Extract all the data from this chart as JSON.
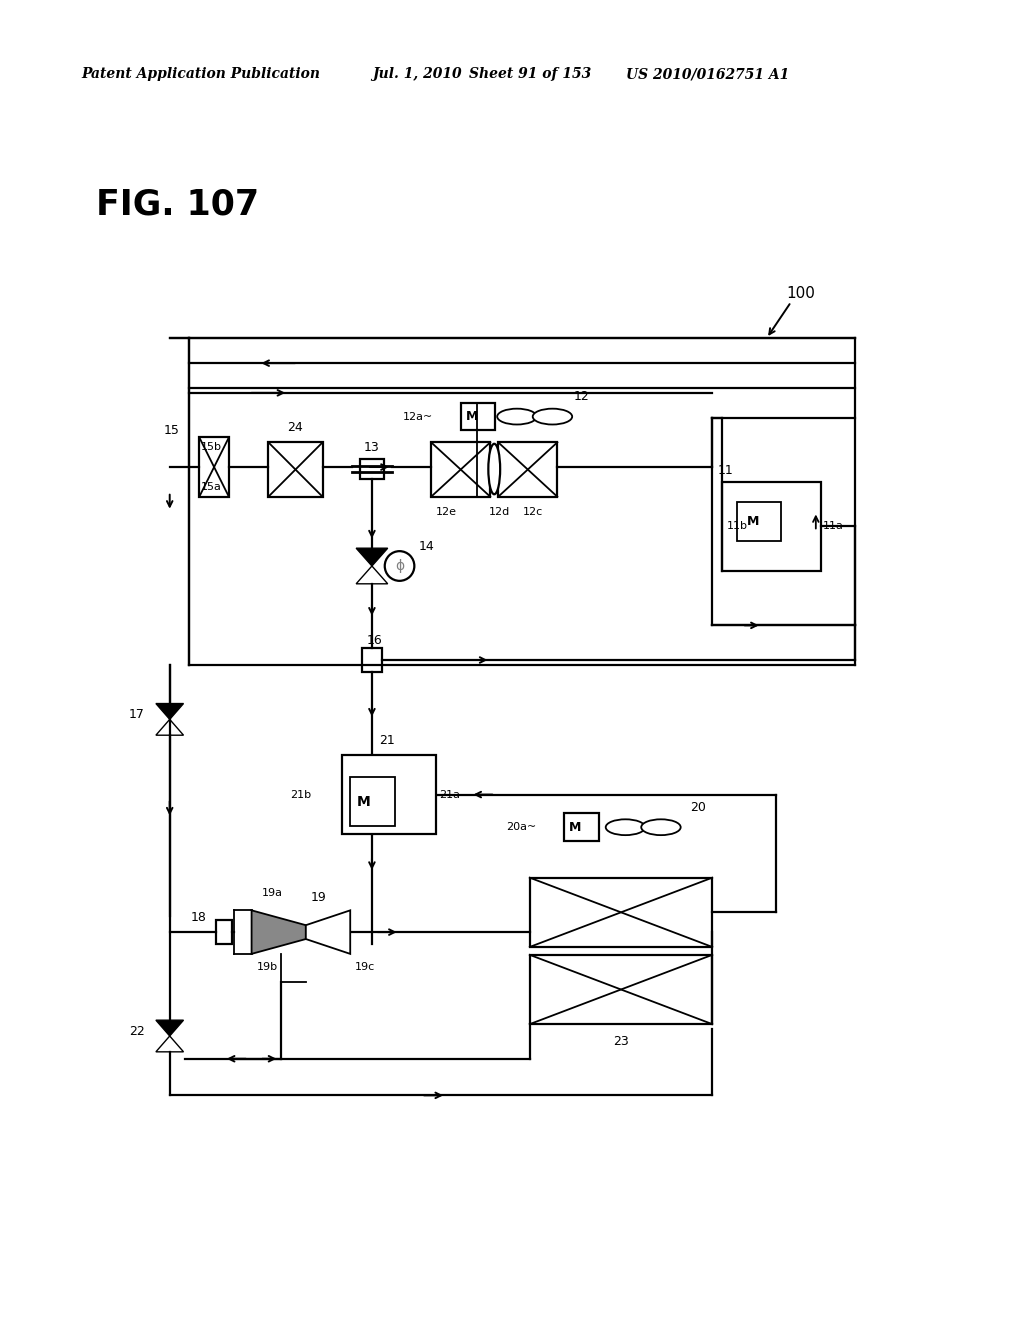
{
  "bg_color": "#ffffff",
  "header_left": "Patent Application Publication",
  "header_date": "Jul. 1, 2010",
  "header_sheet": "Sheet 91 of 153",
  "header_patent": "US 2010/0162751 A1",
  "fig_label": "FIG. 107"
}
